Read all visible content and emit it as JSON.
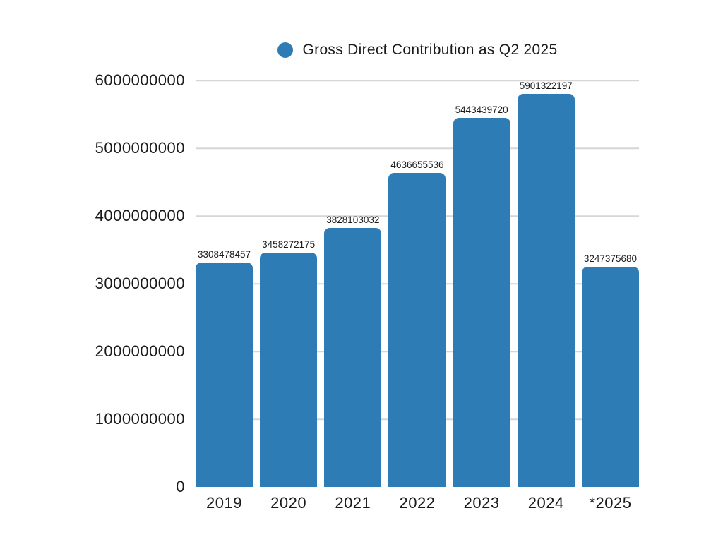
{
  "chart_data": {
    "type": "bar",
    "title": "Gross Direct Contribution as Q2 2025",
    "categories": [
      "2019",
      "2020",
      "2021",
      "2022",
      "2023",
      "2024",
      "*2025"
    ],
    "values": [
      3308478457,
      3458272175,
      3828103032,
      4636655536,
      5443439720,
      5901322197,
      3247375680
    ],
    "value_labels": [
      "3308478457",
      "3458272175",
      "3828103032",
      "4636655536",
      "5443439720",
      "5901322197",
      "3247375680"
    ],
    "xlabel": "",
    "ylabel": "",
    "ylim": [
      0,
      6000000000
    ],
    "yticks": [
      0,
      1000000000,
      2000000000,
      3000000000,
      4000000000,
      5000000000,
      6000000000
    ],
    "ytick_labels": [
      "0",
      "1000000000",
      "2000000000",
      "3000000000",
      "4000000000",
      "5000000000",
      "6000000000"
    ],
    "grid": "horizontal",
    "legend_position": "top-center",
    "colors": {
      "bar": "#2e7cb5",
      "grid": "#d6d6d6",
      "text": "#1a1a1a",
      "background": "#ffffff"
    }
  }
}
